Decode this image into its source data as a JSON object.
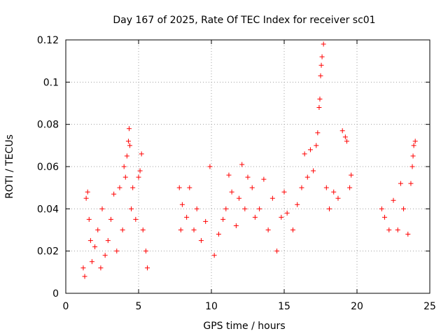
{
  "chart_data": {
    "type": "scatter",
    "title": "Day 167 of 2025, Rate Of TEC Index for receiver sc01",
    "xlabel": "GPS time / hours",
    "ylabel": "ROTI / TECUs",
    "xlim": [
      0,
      25
    ],
    "ylim": [
      0,
      0.12
    ],
    "x_ticks": [
      0,
      5,
      10,
      15,
      20,
      25
    ],
    "x_tick_labels": [
      "0",
      "5",
      "10",
      "15",
      "20",
      "25"
    ],
    "y_ticks": [
      0,
      0.02,
      0.04,
      0.06,
      0.08,
      0.1,
      0.12
    ],
    "y_tick_labels": [
      "0",
      "0.02",
      "0.04",
      "0.06",
      "0.08",
      "0.1",
      "0.12"
    ],
    "grid": true,
    "marker": "plus",
    "color": "#ff0000",
    "series": [
      {
        "points": [
          [
            1.2,
            0.012
          ],
          [
            1.3,
            0.008
          ],
          [
            1.4,
            0.045
          ],
          [
            1.5,
            0.048
          ],
          [
            1.6,
            0.035
          ],
          [
            1.7,
            0.025
          ],
          [
            1.8,
            0.015
          ],
          [
            2.0,
            0.022
          ],
          [
            2.2,
            0.03
          ],
          [
            2.4,
            0.012
          ],
          [
            2.5,
            0.04
          ],
          [
            2.7,
            0.018
          ],
          [
            2.9,
            0.025
          ],
          [
            3.1,
            0.035
          ],
          [
            3.3,
            0.047
          ],
          [
            3.5,
            0.02
          ],
          [
            3.7,
            0.05
          ],
          [
            3.9,
            0.03
          ],
          [
            4.0,
            0.06
          ],
          [
            4.1,
            0.055
          ],
          [
            4.2,
            0.065
          ],
          [
            4.3,
            0.072
          ],
          [
            4.35,
            0.078
          ],
          [
            4.4,
            0.07
          ],
          [
            4.5,
            0.04
          ],
          [
            4.6,
            0.05
          ],
          [
            4.8,
            0.035
          ],
          [
            5.0,
            0.055
          ],
          [
            5.1,
            0.058
          ],
          [
            5.2,
            0.066
          ],
          [
            5.3,
            0.03
          ],
          [
            5.5,
            0.02
          ],
          [
            5.6,
            0.012
          ],
          [
            7.8,
            0.05
          ],
          [
            7.9,
            0.03
          ],
          [
            8.0,
            0.042
          ],
          [
            8.3,
            0.036
          ],
          [
            8.5,
            0.05
          ],
          [
            8.8,
            0.03
          ],
          [
            9.0,
            0.04
          ],
          [
            9.3,
            0.025
          ],
          [
            9.6,
            0.034
          ],
          [
            9.9,
            0.06
          ],
          [
            10.2,
            0.018
          ],
          [
            10.5,
            0.028
          ],
          [
            10.8,
            0.035
          ],
          [
            11.0,
            0.04
          ],
          [
            11.2,
            0.056
          ],
          [
            11.4,
            0.048
          ],
          [
            11.7,
            0.032
          ],
          [
            11.9,
            0.045
          ],
          [
            12.1,
            0.061
          ],
          [
            12.3,
            0.04
          ],
          [
            12.5,
            0.055
          ],
          [
            12.8,
            0.05
          ],
          [
            13.0,
            0.036
          ],
          [
            13.3,
            0.04
          ],
          [
            13.6,
            0.054
          ],
          [
            13.9,
            0.03
          ],
          [
            14.2,
            0.045
          ],
          [
            14.5,
            0.02
          ],
          [
            14.8,
            0.036
          ],
          [
            15.0,
            0.048
          ],
          [
            15.2,
            0.038
          ],
          [
            15.6,
            0.03
          ],
          [
            15.9,
            0.042
          ],
          [
            16.2,
            0.05
          ],
          [
            16.4,
            0.066
          ],
          [
            16.6,
            0.055
          ],
          [
            16.8,
            0.068
          ],
          [
            17.0,
            0.058
          ],
          [
            17.2,
            0.07
          ],
          [
            17.3,
            0.076
          ],
          [
            17.4,
            0.088
          ],
          [
            17.45,
            0.092
          ],
          [
            17.5,
            0.103
          ],
          [
            17.55,
            0.108
          ],
          [
            17.6,
            0.112
          ],
          [
            17.7,
            0.118
          ],
          [
            17.9,
            0.05
          ],
          [
            18.1,
            0.04
          ],
          [
            18.4,
            0.048
          ],
          [
            18.7,
            0.045
          ],
          [
            19.0,
            0.077
          ],
          [
            19.2,
            0.074
          ],
          [
            19.3,
            0.072
          ],
          [
            19.5,
            0.05
          ],
          [
            19.6,
            0.056
          ],
          [
            21.7,
            0.04
          ],
          [
            21.9,
            0.036
          ],
          [
            22.2,
            0.03
          ],
          [
            22.5,
            0.044
          ],
          [
            22.8,
            0.03
          ],
          [
            23.0,
            0.052
          ],
          [
            23.2,
            0.04
          ],
          [
            23.5,
            0.028
          ],
          [
            23.7,
            0.052
          ],
          [
            23.8,
            0.06
          ],
          [
            23.85,
            0.065
          ],
          [
            23.9,
            0.07
          ],
          [
            24.0,
            0.072
          ]
        ]
      }
    ]
  }
}
